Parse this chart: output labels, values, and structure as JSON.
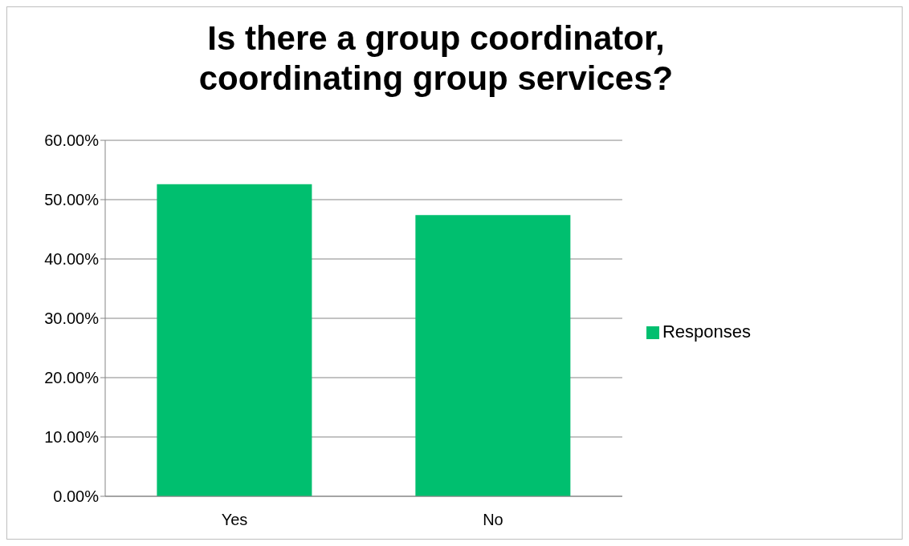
{
  "chart_data": {
    "type": "bar",
    "title": "Is there a group coordinator, coordinating group services?",
    "categories": [
      "Yes",
      "No"
    ],
    "series": [
      {
        "name": "Responses",
        "color": "#00bf6f",
        "values": [
          52.6,
          47.4
        ]
      }
    ],
    "ylim": [
      0,
      60
    ],
    "yticks": [
      {
        "value": 0,
        "label": "0.00%"
      },
      {
        "value": 10,
        "label": "10.00%"
      },
      {
        "value": 20,
        "label": "20.00%"
      },
      {
        "value": 30,
        "label": "30.00%"
      },
      {
        "value": 40,
        "label": "40.00%"
      },
      {
        "value": 50,
        "label": "50.00%"
      },
      {
        "value": 60,
        "label": "60.00%"
      }
    ],
    "grid": "y",
    "legend": "right"
  }
}
